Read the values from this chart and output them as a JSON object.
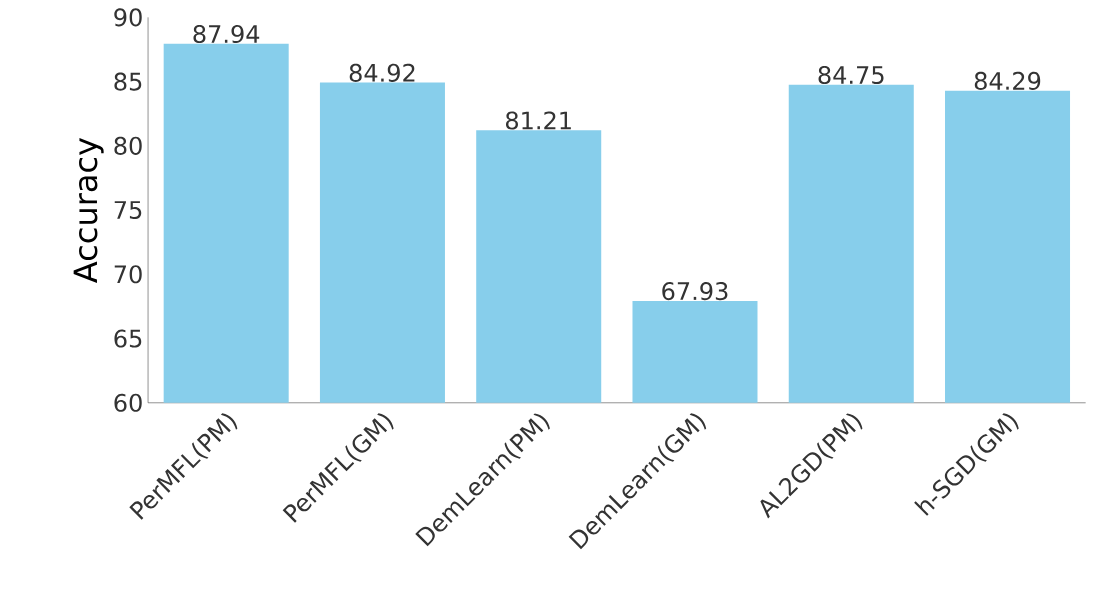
{
  "chart_data": {
    "type": "bar",
    "ylabel": "Accuracy",
    "categories": [
      "PerMFL(PM)",
      "PerMFL(GM)",
      "DemLearn(PM)",
      "DemLearn(GM)",
      "AL2GD(PM)",
      "h-SGD(GM)"
    ],
    "values": [
      87.94,
      84.92,
      81.21,
      67.93,
      84.75,
      84.29
    ],
    "color": "#87ceeb",
    "ylim": [
      60,
      90
    ],
    "yticks": [
      60,
      65,
      70,
      75,
      80,
      85,
      90
    ],
    "data_labels": true
  }
}
